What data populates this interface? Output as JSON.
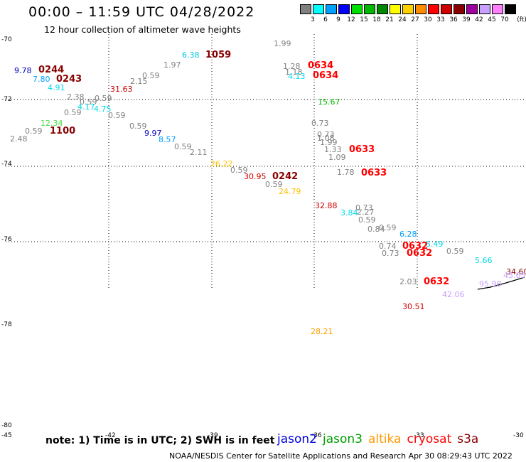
{
  "title": "00:00 – 11:59 UTC 04/28/2022",
  "subtitle": "12 hour collection of altimeter wave heights",
  "legend": {
    "unit": "(ft)",
    "bins": [
      {
        "label": "3",
        "color": "#808080"
      },
      {
        "label": "6",
        "color": "#00ffff"
      },
      {
        "label": "9",
        "color": "#00a0ff"
      },
      {
        "label": "12",
        "color": "#0000ff"
      },
      {
        "label": "15",
        "color": "#00e000"
      },
      {
        "label": "18",
        "color": "#00b800"
      },
      {
        "label": "21",
        "color": "#008800"
      },
      {
        "label": "24",
        "color": "#ffff00"
      },
      {
        "label": "27",
        "color": "#ffd000"
      },
      {
        "label": "30",
        "color": "#ff8c00"
      },
      {
        "label": "33",
        "color": "#ff0000"
      },
      {
        "label": "36",
        "color": "#d00000"
      },
      {
        "label": "39",
        "color": "#880000"
      },
      {
        "label": "42",
        "color": "#a000a0"
      },
      {
        "label": "45",
        "color": "#c8a0ff"
      },
      {
        "label": "70",
        "color": "#ff80ff"
      },
      {
        "label": "",
        "color": "#000000"
      }
    ]
  },
  "axes": {
    "latitudes": [
      "-70",
      "-72",
      "-74",
      "-76",
      "-78",
      "-80"
    ],
    "longitudes": [
      "-45",
      "-42",
      "-39",
      "-36",
      "-33",
      "-30"
    ]
  },
  "wave_heights": [
    {
      "v": "1.99",
      "c": "#808080"
    },
    {
      "v": "6.38",
      "c": "#00c8e0"
    },
    {
      "v": "1.97",
      "c": "#808080"
    },
    {
      "v": "0.59",
      "c": "#808080"
    },
    {
      "v": "2.15",
      "c": "#808080"
    },
    {
      "v": "9.78",
      "c": "#0000c0"
    },
    {
      "v": "7.80",
      "c": "#00a0ff"
    },
    {
      "v": "4.91",
      "c": "#00d8e8"
    },
    {
      "v": "31.63",
      "c": "#d00000"
    },
    {
      "v": "2.38",
      "c": "#808080"
    },
    {
      "v": "0.59",
      "c": "#808080"
    },
    {
      "v": "0.59",
      "c": "#808080"
    },
    {
      "v": "4.17",
      "c": "#00d8e8"
    },
    {
      "v": "4.75",
      "c": "#00d8e8"
    },
    {
      "v": "0.59",
      "c": "#808080"
    },
    {
      "v": "0.59",
      "c": "#808080"
    },
    {
      "v": "12.34",
      "c": "#44dd44"
    },
    {
      "v": "0.59",
      "c": "#808080"
    },
    {
      "v": "2.48",
      "c": "#808080"
    },
    {
      "v": "0.59",
      "c": "#808080"
    },
    {
      "v": "9.97",
      "c": "#0000c0"
    },
    {
      "v": "8.57",
      "c": "#00a0ff"
    },
    {
      "v": "0.59",
      "c": "#808080"
    },
    {
      "v": "2.11",
      "c": "#808080"
    },
    {
      "v": "26.22",
      "c": "#ffc000"
    },
    {
      "v": "0.59",
      "c": "#808080"
    },
    {
      "v": "30.95",
      "c": "#d00000"
    },
    {
      "v": "0.59",
      "c": "#808080"
    },
    {
      "v": "24.79",
      "c": "#ffc000"
    },
    {
      "v": "1.28",
      "c": "#808080"
    },
    {
      "v": "1.18",
      "c": "#808080"
    },
    {
      "v": "4.13",
      "c": "#00d8e8"
    },
    {
      "v": "15.67",
      "c": "#00b800"
    },
    {
      "v": "0.73",
      "c": "#808080"
    },
    {
      "v": "0.73",
      "c": "#808080"
    },
    {
      "v": "1.08",
      "c": "#808080"
    },
    {
      "v": "1.99",
      "c": "#808080"
    },
    {
      "v": "1.33",
      "c": "#808080"
    },
    {
      "v": "1.09",
      "c": "#808080"
    },
    {
      "v": "1.78",
      "c": "#808080"
    },
    {
      "v": "32.88",
      "c": "#d00000"
    },
    {
      "v": "3.84",
      "c": "#00d8e8"
    },
    {
      "v": "0.73",
      "c": "#808080"
    },
    {
      "v": "2.27",
      "c": "#808080"
    },
    {
      "v": "0.59",
      "c": "#808080"
    },
    {
      "v": "0.84",
      "c": "#808080"
    },
    {
      "v": "0.59",
      "c": "#808080"
    },
    {
      "v": "6.28",
      "c": "#00a0ff"
    },
    {
      "v": "0.74",
      "c": "#808080"
    },
    {
      "v": "0.73",
      "c": "#808080"
    },
    {
      "v": "5.49",
      "c": "#00d8e8"
    },
    {
      "v": "0.59",
      "c": "#808080"
    },
    {
      "v": "5.66",
      "c": "#00d8e8"
    },
    {
      "v": "34.60",
      "c": "#880000"
    },
    {
      "v": "43.65",
      "c": "#c8a0ff"
    },
    {
      "v": "95.98",
      "c": "#c8a0ff"
    },
    {
      "v": "42.06",
      "c": "#c8a0ff"
    },
    {
      "v": "2.03",
      "c": "#808080"
    },
    {
      "v": "30.51",
      "c": "#d00000"
    },
    {
      "v": "28.21",
      "c": "#ffa000"
    }
  ],
  "cycle_labels": [
    {
      "v": "1059",
      "c": "#880000"
    },
    {
      "v": "0244",
      "c": "#880000"
    },
    {
      "v": "0243",
      "c": "#880000"
    },
    {
      "v": "1100",
      "c": "#880000"
    },
    {
      "v": "0242",
      "c": "#880000"
    },
    {
      "v": "0634",
      "c": "#ff0000"
    },
    {
      "v": "0634",
      "c": "#ff0000"
    },
    {
      "v": "0633",
      "c": "#ff0000"
    },
    {
      "v": "0633",
      "c": "#ff0000"
    },
    {
      "v": "0632",
      "c": "#ff0000"
    },
    {
      "v": "0632",
      "c": "#ff0000"
    },
    {
      "v": "0632",
      "c": "#ff0000"
    }
  ],
  "note": "note:  1) Time is in UTC;  2) SWH is in feet",
  "satellites": [
    {
      "name": "jason2",
      "color": "#0000dd"
    },
    {
      "name": "jason3",
      "color": "#00a000"
    },
    {
      "name": "altika",
      "color": "#ff9900"
    },
    {
      "name": "cryosat",
      "color": "#ff0000"
    },
    {
      "name": "s3a",
      "color": "#880000"
    }
  ],
  "footer": "NOAA/NESDIS Center for Satellite Applications and Research    Apr 30 08:29:43 UTC 2022"
}
